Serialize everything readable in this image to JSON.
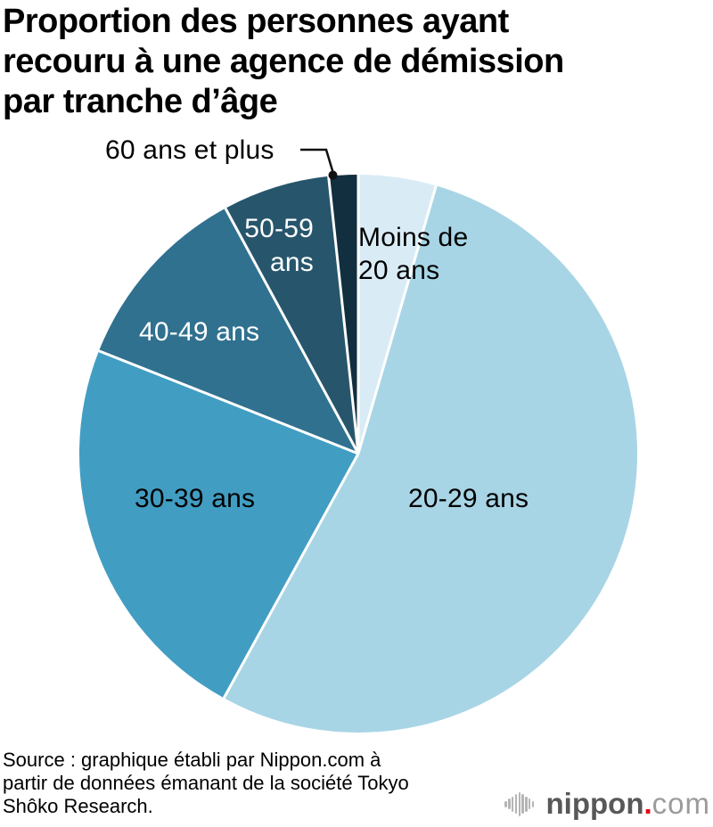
{
  "page": {
    "title_display": "Proportion des personnes ayant\nrecouru à une agence de démission\npar tranche d’âge",
    "source": "Source : graphique établi par Nippon.com à\npartir de données émanant de la société Tokyo\nShôko Research.",
    "logo": {
      "name": "nippon",
      "dot": ".",
      "tld": "com",
      "red": "#e60012",
      "dark_gray": "#595757",
      "light_gray": "#9b9b9b",
      "icon_gray": "#b5b5b5"
    }
  },
  "chart_data": {
    "type": "pie",
    "title": "Proportion des personnes ayant recouru à une agence de démission par tranche d’âge",
    "start_angle_deg": 0,
    "direction": "clockwise",
    "values_estimated_from_angles": true,
    "unit": "%",
    "legend_position": "labels-on-slices",
    "divider_color": "#ffffff",
    "slices": [
      {
        "label": "Moins de 20 ans",
        "display": "Moins de\n20 ans",
        "value": 4.5,
        "color": "#D9ECF6",
        "label_color": "#000000"
      },
      {
        "label": "20-29 ans",
        "display": "20-29 ans",
        "value": 53.5,
        "color": "#A8D5E5",
        "label_color": "#000000"
      },
      {
        "label": "30-39 ans",
        "display": "30-39 ans",
        "value": 23.0,
        "color": "#429DC3",
        "label_color": "#000000"
      },
      {
        "label": "40-49 ans",
        "display": "40-49 ans",
        "value": 11.1,
        "color": "#30718F",
        "label_color": "#ffffff"
      },
      {
        "label": "50-59 ans",
        "display": "50-59\nans",
        "value": 6.2,
        "color": "#27566C",
        "label_color": "#ffffff"
      },
      {
        "label": "60 ans et plus",
        "display": "60 ans et plus",
        "value": 1.7,
        "color": "#112F3E",
        "label_color": "#000000",
        "callout": true
      }
    ]
  }
}
